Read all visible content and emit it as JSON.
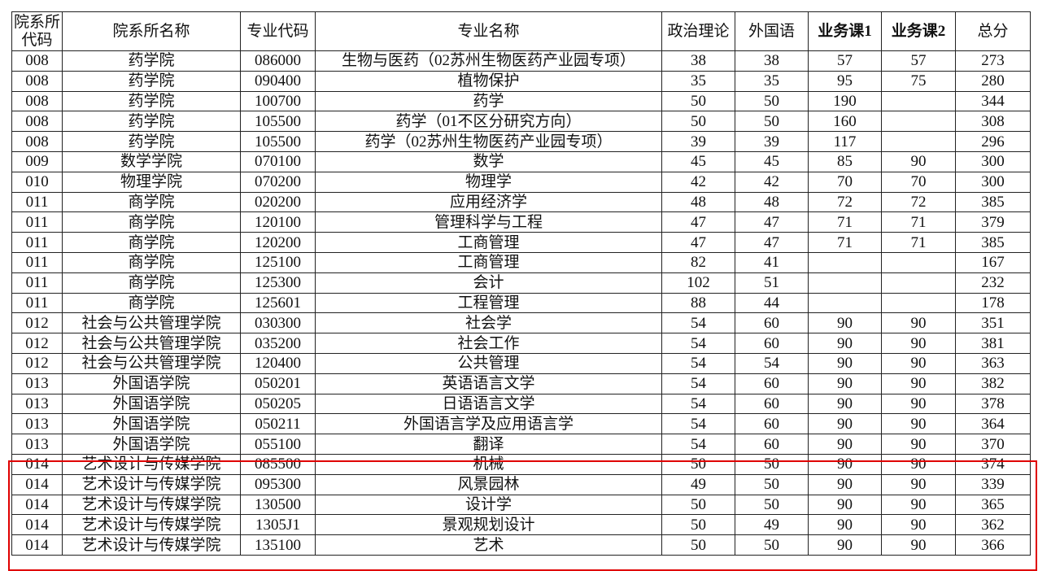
{
  "table": {
    "headers": [
      "院系所\n代码",
      "院系所名称",
      "专业代码",
      "专业名称",
      "政治理论",
      "外国语",
      "业务课1",
      "业务课2",
      "总分"
    ],
    "rows": [
      [
        "008",
        "药学院",
        "086000",
        "生物与医药（02苏州生物医药产业园专项）",
        "38",
        "38",
        "57",
        "57",
        "273"
      ],
      [
        "008",
        "药学院",
        "090400",
        "植物保护",
        "35",
        "35",
        "95",
        "75",
        "280"
      ],
      [
        "008",
        "药学院",
        "100700",
        "药学",
        "50",
        "50",
        "190",
        "",
        "344"
      ],
      [
        "008",
        "药学院",
        "105500",
        "药学（01不区分研究方向）",
        "50",
        "50",
        "160",
        "",
        "308"
      ],
      [
        "008",
        "药学院",
        "105500",
        "药学（02苏州生物医药产业园专项）",
        "39",
        "39",
        "117",
        "",
        "296"
      ],
      [
        "009",
        "数学学院",
        "070100",
        "数学",
        "45",
        "45",
        "85",
        "90",
        "300"
      ],
      [
        "010",
        "物理学院",
        "070200",
        "物理学",
        "42",
        "42",
        "70",
        "70",
        "300"
      ],
      [
        "011",
        "商学院",
        "020200",
        "应用经济学",
        "48",
        "48",
        "72",
        "72",
        "385"
      ],
      [
        "011",
        "商学院",
        "120100",
        "管理科学与工程",
        "47",
        "47",
        "71",
        "71",
        "379"
      ],
      [
        "011",
        "商学院",
        "120200",
        "工商管理",
        "47",
        "47",
        "71",
        "71",
        "385"
      ],
      [
        "011",
        "商学院",
        "125100",
        "工商管理",
        "82",
        "41",
        "",
        "",
        "167"
      ],
      [
        "011",
        "商学院",
        "125300",
        "会计",
        "102",
        "51",
        "",
        "",
        "232"
      ],
      [
        "011",
        "商学院",
        "125601",
        "工程管理",
        "88",
        "44",
        "",
        "",
        "178"
      ],
      [
        "012",
        "社会与公共管理学院",
        "030300",
        "社会学",
        "54",
        "60",
        "90",
        "90",
        "351"
      ],
      [
        "012",
        "社会与公共管理学院",
        "035200",
        "社会工作",
        "54",
        "60",
        "90",
        "90",
        "381"
      ],
      [
        "012",
        "社会与公共管理学院",
        "120400",
        "公共管理",
        "54",
        "54",
        "90",
        "90",
        "363"
      ],
      [
        "013",
        "外国语学院",
        "050201",
        "英语语言文学",
        "54",
        "60",
        "90",
        "90",
        "382"
      ],
      [
        "013",
        "外国语学院",
        "050205",
        "日语语言文学",
        "54",
        "60",
        "90",
        "90",
        "378"
      ],
      [
        "013",
        "外国语学院",
        "050211",
        "外国语言学及应用语言学",
        "54",
        "60",
        "90",
        "90",
        "364"
      ],
      [
        "013",
        "外国语学院",
        "055100",
        "翻译",
        "54",
        "60",
        "90",
        "90",
        "370"
      ],
      [
        "014",
        "艺术设计与传媒学院",
        "085500",
        "机械",
        "50",
        "50",
        "90",
        "90",
        "374"
      ],
      [
        "014",
        "艺术设计与传媒学院",
        "095300",
        "风景园林",
        "49",
        "50",
        "90",
        "90",
        "339"
      ],
      [
        "014",
        "艺术设计与传媒学院",
        "130500",
        "设计学",
        "50",
        "50",
        "90",
        "90",
        "365"
      ],
      [
        "014",
        "艺术设计与传媒学院",
        "1305J1",
        "景观规划设计",
        "50",
        "49",
        "90",
        "90",
        "362"
      ],
      [
        "014",
        "艺术设计与传媒学院",
        "135100",
        "艺术",
        "50",
        "50",
        "90",
        "90",
        "366"
      ]
    ]
  },
  "highlight_color": "#e00000"
}
